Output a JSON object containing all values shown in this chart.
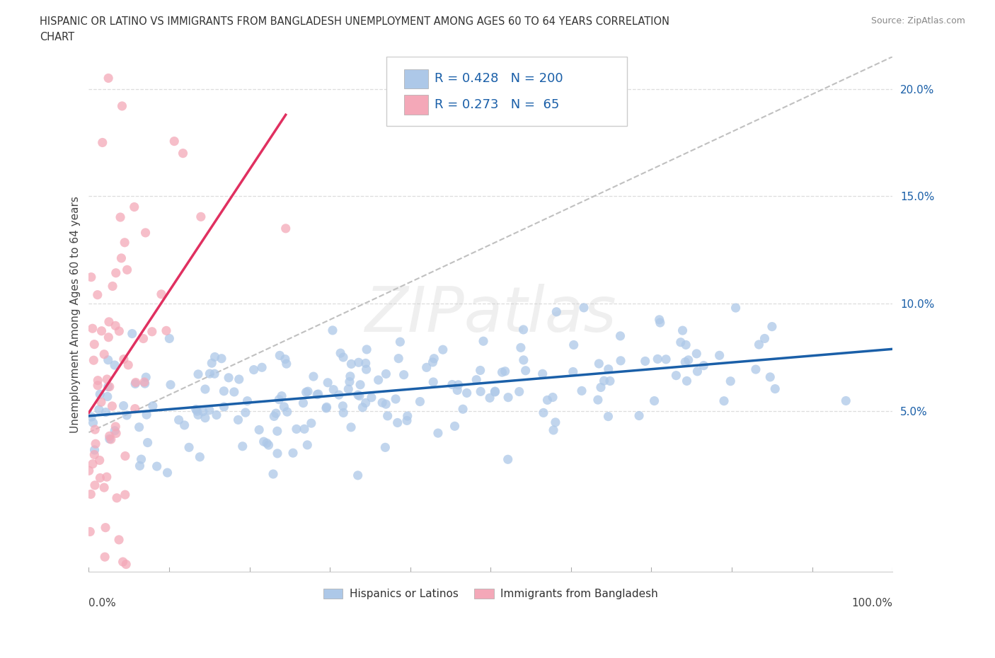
{
  "title": "HISPANIC OR LATINO VS IMMIGRANTS FROM BANGLADESH UNEMPLOYMENT AMONG AGES 60 TO 64 YEARS CORRELATION\nCHART",
  "source_text": "Source: ZipAtlas.com",
  "ylabel": "Unemployment Among Ages 60 to 64 years",
  "blue_R": 0.428,
  "blue_N": 200,
  "pink_R": 0.273,
  "pink_N": 65,
  "blue_color": "#adc8e8",
  "pink_color": "#f4a8b8",
  "blue_line_color": "#1a5fa8",
  "pink_line_color": "#e03060",
  "blue_label": "Hispanics or Latinos",
  "pink_label": "Immigrants from Bangladesh",
  "x_min": 0.0,
  "x_max": 1.0,
  "y_min": -0.025,
  "y_max": 0.215,
  "yticks": [
    0.0,
    0.05,
    0.1,
    0.15,
    0.2
  ],
  "ytick_labels": [
    "",
    "5.0%",
    "10.0%",
    "15.0%",
    "20.0%"
  ],
  "xtick_labels_corner": [
    "0.0%",
    "100.0%"
  ],
  "grid_color": "#dddddd",
  "background_color": "#ffffff",
  "watermark_text": "ZIPatlas",
  "legend_R_color": "#1a5fa8",
  "legend_N_color": "#1a5fa8"
}
